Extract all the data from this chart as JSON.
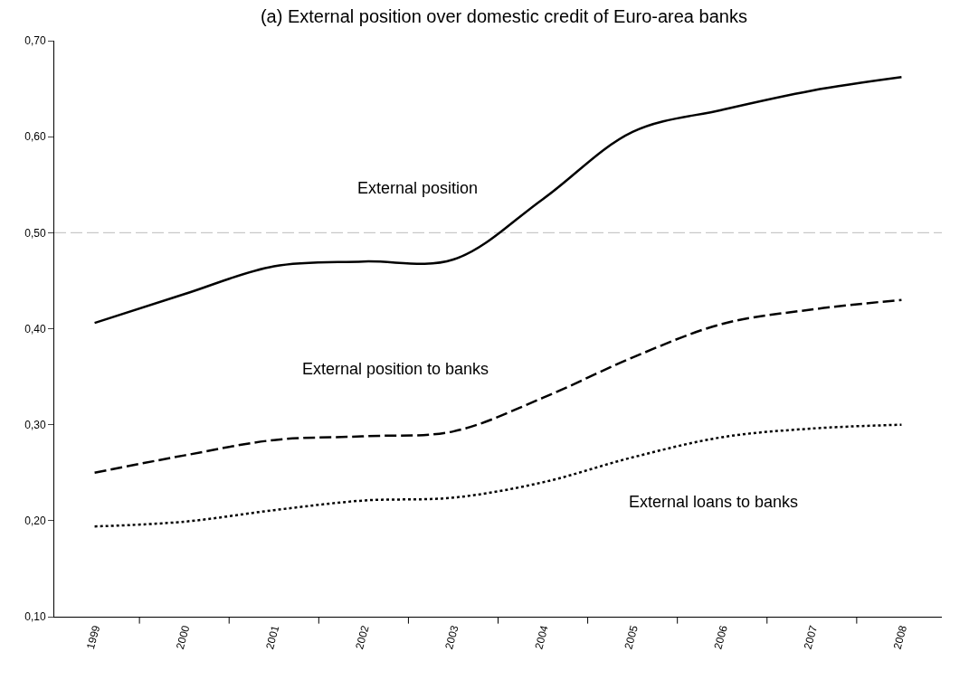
{
  "chart_data": {
    "type": "line",
    "title": "(a) External position over domestic credit of Euro-area banks",
    "categories": [
      "1999",
      "2000",
      "2001",
      "2002",
      "2003",
      "2004",
      "2005",
      "2006",
      "2007",
      "2008"
    ],
    "series": [
      {
        "name": "External position",
        "color": "#000000",
        "line_style": "solid",
        "values": [
          0.406,
          0.436,
          0.465,
          0.47,
          0.472,
          0.535,
          0.605,
          0.628,
          0.648,
          0.662
        ]
      },
      {
        "name": "External position to banks",
        "color": "#000000",
        "line_style": "dashed",
        "values": [
          0.25,
          0.268,
          0.284,
          0.288,
          0.293,
          0.328,
          0.37,
          0.405,
          0.42,
          0.43
        ]
      },
      {
        "name": "External loans to banks",
        "color": "#000000",
        "line_style": "dotted",
        "values": [
          0.194,
          0.199,
          0.211,
          0.221,
          0.224,
          0.24,
          0.266,
          0.287,
          0.296,
          0.3
        ]
      }
    ],
    "ylim": [
      0.1,
      0.7
    ],
    "yticks": [
      {
        "value": 0.1,
        "label": "0,10"
      },
      {
        "value": 0.2,
        "label": "0,20"
      },
      {
        "value": 0.3,
        "label": "0,30"
      },
      {
        "value": 0.4,
        "label": "0,40"
      },
      {
        "value": 0.5,
        "label": "0,50"
      },
      {
        "value": 0.6,
        "label": "0,60"
      },
      {
        "value": 0.7,
        "label": "0,70"
      }
    ],
    "ref_lines": [
      {
        "axis": "y",
        "value": 0.5,
        "label": null,
        "color": "#bbbbbb",
        "line_style": "dashed"
      }
    ],
    "grid": false,
    "legend": false,
    "marker": "none"
  }
}
